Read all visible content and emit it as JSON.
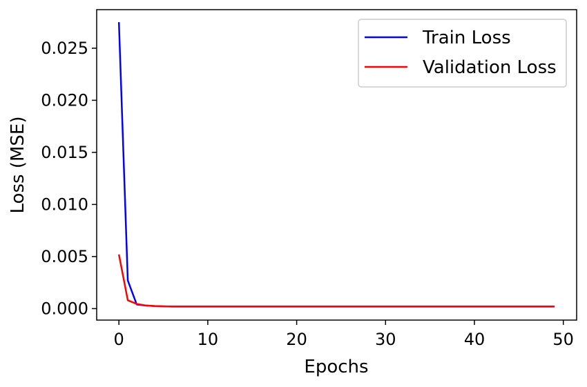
{
  "chart_data": {
    "type": "line",
    "title": "",
    "xlabel": "Epochs",
    "ylabel": "Loss (MSE)",
    "xlim": [
      -2.5,
      51.5
    ],
    "ylim": [
      -0.0011,
      0.0287
    ],
    "xticks": [
      0,
      10,
      20,
      30,
      40,
      50
    ],
    "xtick_labels": [
      "0",
      "10",
      "20",
      "30",
      "40",
      "50"
    ],
    "yticks": [
      0.0,
      0.005,
      0.01,
      0.015,
      0.02,
      0.025
    ],
    "ytick_labels": [
      "0.000",
      "0.005",
      "0.010",
      "0.015",
      "0.020",
      "0.025"
    ],
    "grid": false,
    "legend_position": "top-right",
    "series": [
      {
        "name": "Train Loss",
        "color": "#0000ff",
        "x": [
          0,
          1,
          2,
          3,
          4,
          5,
          6,
          7,
          8,
          9,
          10,
          11,
          12,
          13,
          14,
          15,
          16,
          17,
          18,
          19,
          20,
          21,
          22,
          23,
          24,
          25,
          26,
          27,
          28,
          29,
          30,
          31,
          32,
          33,
          34,
          35,
          36,
          37,
          38,
          39,
          40,
          41,
          42,
          43,
          44,
          45,
          46,
          47,
          48,
          49
        ],
        "values": [
          0.0275,
          0.0027,
          0.0004,
          0.0003,
          0.00025,
          0.00022,
          0.0002,
          0.0002,
          0.0002,
          0.0002,
          0.0002,
          0.0002,
          0.0002,
          0.0002,
          0.0002,
          0.0002,
          0.0002,
          0.0002,
          0.0002,
          0.0002,
          0.0002,
          0.0002,
          0.0002,
          0.0002,
          0.0002,
          0.0002,
          0.0002,
          0.0002,
          0.0002,
          0.0002,
          0.0002,
          0.0002,
          0.0002,
          0.0002,
          0.0002,
          0.0002,
          0.0002,
          0.0002,
          0.0002,
          0.0002,
          0.0002,
          0.0002,
          0.0002,
          0.0002,
          0.0002,
          0.0002,
          0.0002,
          0.0002,
          0.0002,
          0.0002
        ]
      },
      {
        "name": "Validation Loss",
        "color": "#ff0000",
        "x": [
          0,
          1,
          2,
          3,
          4,
          5,
          6,
          7,
          8,
          9,
          10,
          11,
          12,
          13,
          14,
          15,
          16,
          17,
          18,
          19,
          20,
          21,
          22,
          23,
          24,
          25,
          26,
          27,
          28,
          29,
          30,
          31,
          32,
          33,
          34,
          35,
          36,
          37,
          38,
          39,
          40,
          41,
          42,
          43,
          44,
          45,
          46,
          47,
          48,
          49
        ],
        "values": [
          0.0052,
          0.0008,
          0.00045,
          0.0003,
          0.00025,
          0.00022,
          0.0002,
          0.0002,
          0.0002,
          0.0002,
          0.0002,
          0.0002,
          0.0002,
          0.0002,
          0.0002,
          0.0002,
          0.0002,
          0.0002,
          0.0002,
          0.0002,
          0.0002,
          0.0002,
          0.0002,
          0.0002,
          0.0002,
          0.0002,
          0.0002,
          0.0002,
          0.0002,
          0.0002,
          0.0002,
          0.0002,
          0.0002,
          0.0002,
          0.0002,
          0.0002,
          0.0002,
          0.0002,
          0.0002,
          0.0002,
          0.0002,
          0.0002,
          0.0002,
          0.0002,
          0.0002,
          0.0002,
          0.0002,
          0.0002,
          0.0002,
          0.0002
        ]
      }
    ]
  }
}
